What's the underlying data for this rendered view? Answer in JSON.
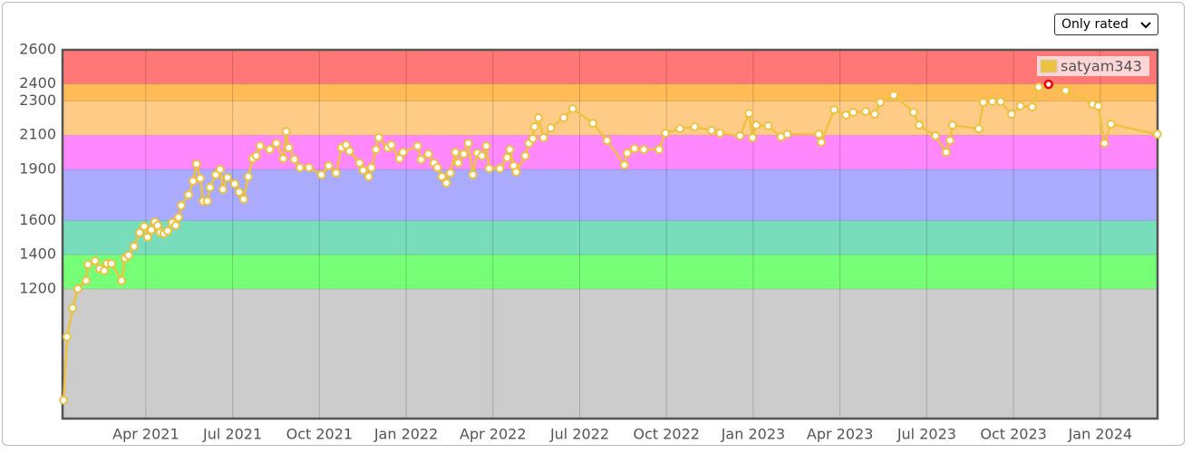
{
  "chart_data": {
    "type": "line",
    "filter_option": "Only rated",
    "xlim": [
      2021.01,
      2024.165
    ],
    "xticks": [
      {
        "value": 2021.25,
        "label": "Apr 2021"
      },
      {
        "value": 2021.5,
        "label": "Jul 2021"
      },
      {
        "value": 2021.75,
        "label": "Oct 2021"
      },
      {
        "value": 2022.0,
        "label": "Jan 2022"
      },
      {
        "value": 2022.25,
        "label": "Apr 2022"
      },
      {
        "value": 2022.5,
        "label": "Jul 2022"
      },
      {
        "value": 2022.75,
        "label": "Oct 2022"
      },
      {
        "value": 2023.0,
        "label": "Jan 2023"
      },
      {
        "value": 2023.25,
        "label": "Apr 2023"
      },
      {
        "value": 2023.5,
        "label": "Jul 2023"
      },
      {
        "value": 2023.75,
        "label": "Oct 2023"
      },
      {
        "value": 2024.0,
        "label": "Jan 2024"
      }
    ],
    "ylim": [
      440,
      2600
    ],
    "yticks": [
      1200,
      1400,
      1600,
      1900,
      2100,
      2300,
      2400,
      2600
    ],
    "grid": true,
    "legend": "top-right",
    "bands": [
      {
        "from": 440,
        "to": 1200,
        "color": "#cccccc"
      },
      {
        "from": 1200,
        "to": 1400,
        "color": "#77ff77"
      },
      {
        "from": 1400,
        "to": 1600,
        "color": "#77ddbb"
      },
      {
        "from": 1600,
        "to": 1900,
        "color": "#aaaaff"
      },
      {
        "from": 1900,
        "to": 2100,
        "color": "#ff88ff"
      },
      {
        "from": 2100,
        "to": 2300,
        "color": "#ffcc88"
      },
      {
        "from": 2300,
        "to": 2400,
        "color": "#ffbb55"
      },
      {
        "from": 2400,
        "to": 2600,
        "color": "#ff7777"
      }
    ],
    "highlight_color": "#ee0000",
    "series": [
      {
        "name": "satyam343",
        "color": "#edc240",
        "x": [
          2021.013,
          2021.023,
          2021.039,
          2021.054,
          2021.078,
          2021.083,
          2021.104,
          2021.117,
          2021.13,
          2021.138,
          2021.151,
          2021.18,
          2021.19,
          2021.2,
          2021.216,
          2021.232,
          2021.245,
          2021.255,
          2021.266,
          2021.276,
          2021.284,
          2021.292,
          2021.302,
          2021.313,
          2021.326,
          2021.336,
          2021.344,
          2021.352,
          2021.373,
          2021.386,
          2021.396,
          2021.407,
          2021.415,
          2021.427,
          2021.435,
          2021.451,
          2021.464,
          2021.472,
          2021.485,
          2021.506,
          2021.519,
          2021.532,
          2021.545,
          2021.558,
          2021.568,
          2021.579,
          2021.607,
          2021.626,
          2021.646,
          2021.654,
          2021.662,
          2021.678,
          2021.694,
          2021.72,
          2021.756,
          2021.777,
          2021.798,
          2021.814,
          2021.827,
          2021.837,
          2021.866,
          2021.876,
          2021.892,
          2021.9,
          2021.913,
          2021.921,
          2021.947,
          2021.957,
          2021.981,
          2021.991,
          2022.033,
          2022.043,
          2022.064,
          2022.08,
          2022.09,
          2022.103,
          2022.116,
          2022.127,
          2022.142,
          2022.15,
          2022.166,
          2022.179,
          2022.192,
          2022.205,
          2022.218,
          2022.231,
          2022.239,
          2022.27,
          2022.291,
          2022.299,
          2022.31,
          2022.317,
          2022.343,
          2022.354,
          2022.365,
          2022.37,
          2022.381,
          2022.396,
          2022.417,
          2022.454,
          2022.48,
          2022.538,
          2022.579,
          2022.629,
          2022.637,
          2022.658,
          2022.685,
          2022.729,
          2022.747,
          2022.789,
          2022.831,
          2022.88,
          2022.904,
          2022.962,
          2022.988,
          2022.998,
          2023.009,
          2023.043,
          2023.08,
          2023.098,
          2023.189,
          2023.196,
          2023.233,
          2023.267,
          2023.288,
          2023.324,
          2023.35,
          2023.366,
          2023.405,
          2023.462,
          2023.478,
          2023.525,
          2023.556,
          2023.567,
          2023.574,
          2023.65,
          2023.663,
          2023.689,
          2023.713,
          2023.744,
          2023.77,
          2023.804,
          2023.822,
          2023.851,
          2023.9,
          2023.978,
          2023.994,
          2024.012,
          2024.031,
          2024.164
        ],
        "values": [
          548,
          919,
          1089,
          1200,
          1248,
          1343,
          1364,
          1317,
          1306,
          1348,
          1348,
          1248,
          1380,
          1396,
          1449,
          1529,
          1566,
          1502,
          1545,
          1592,
          1571,
          1529,
          1523,
          1539,
          1587,
          1571,
          1619,
          1688,
          1751,
          1831,
          1931,
          1847,
          1714,
          1714,
          1794,
          1868,
          1900,
          1783,
          1852,
          1815,
          1767,
          1725,
          1857,
          1963,
          1979,
          2037,
          2016,
          2053,
          1963,
          2122,
          2027,
          1958,
          1910,
          1910,
          1868,
          1921,
          1878,
          2027,
          2043,
          2006,
          1937,
          1894,
          1857,
          1910,
          2016,
          2085,
          2027,
          2043,
          1963,
          2000,
          2037,
          1958,
          1990,
          1937,
          1910,
          1857,
          1820,
          1878,
          2000,
          1937,
          1990,
          2053,
          1868,
          1995,
          1979,
          2037,
          1905,
          1905,
          1969,
          2016,
          1921,
          1884,
          1979,
          2053,
          2080,
          2149,
          2202,
          2085,
          2143,
          2202,
          2255,
          2170,
          2069,
          1926,
          1995,
          2022,
          2016,
          2016,
          2112,
          2138,
          2149,
          2128,
          2112,
          2096,
          2228,
          2085,
          2159,
          2154,
          2090,
          2106,
          2106,
          2059,
          2249,
          2218,
          2234,
          2239,
          2223,
          2292,
          2334,
          2234,
          2159,
          2096,
          2000,
          2069,
          2159,
          2138,
          2292,
          2297,
          2297,
          2223,
          2271,
          2265,
          2382,
          2398,
          2361,
          2281,
          2271,
          2053,
          2165,
          2106
        ]
      }
    ]
  }
}
